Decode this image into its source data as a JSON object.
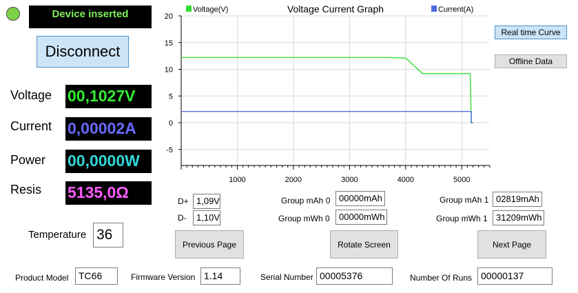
{
  "status": {
    "text": "Device inserted",
    "led_color": "#7ed24a"
  },
  "buttons": {
    "disconnect": "Disconnect",
    "realtime": "Real time Curve",
    "offline": "Offline Data",
    "prev": "Previous Page",
    "rotate": "Rotate Screen",
    "next": "Next Page"
  },
  "readings": {
    "voltage_label": "Voltage",
    "voltage_value": "00,1027V",
    "current_label": "Current",
    "current_value": "0,00002A",
    "power_label": "Power",
    "power_value": "00,0000W",
    "resis_label": "Resis",
    "resis_value": "5135,0Ω",
    "colors": {
      "voltage": "#33ee33",
      "current": "#6a6aff",
      "power": "#33d6d6",
      "resis": "#ff5cff"
    }
  },
  "temperature": {
    "label": "Temperature",
    "value": "36"
  },
  "dlines": {
    "dplus_label": "D+",
    "dplus_value": "1,09V",
    "dminus_label": "D-",
    "dminus_value": "1,10V"
  },
  "groups": {
    "mah0_label": "Group mAh 0",
    "mah0_value": "00000mAh",
    "mwh0_label": "Group mWh 0",
    "mwh0_value": "00000mWh",
    "mah1_label": "Group mAh 1",
    "mah1_value": "02819mAh",
    "mwh1_label": "Group mWh 1",
    "mwh1_value": "31209mWh"
  },
  "footer": {
    "model_label": "Product Model",
    "model_value": "TC66",
    "fw_label": "Firmware Version",
    "fw_value": "1.14",
    "serial_label": "Serial Number",
    "serial_value": "00005376",
    "runs_label": "Number Of Runs",
    "runs_value": "00000137"
  },
  "chart_data": {
    "type": "line",
    "title": "Voltage Current Graph",
    "xlim": [
      0,
      5500
    ],
    "ylim": [
      -8,
      20
    ],
    "x_ticks": [
      1000,
      2000,
      3000,
      4000,
      5000
    ],
    "y_ticks": [
      20,
      15,
      10,
      5,
      0,
      -5
    ],
    "grid": true,
    "legend_placement": "top",
    "series": [
      {
        "name": "Voltage(V)",
        "color": "#33dd33",
        "points": [
          [
            0,
            12.2
          ],
          [
            3700,
            12.2
          ],
          [
            4000,
            12.1
          ],
          [
            4300,
            9.2
          ],
          [
            5150,
            9.2
          ],
          [
            5170,
            0
          ],
          [
            5200,
            0
          ]
        ]
      },
      {
        "name": "Current(A)",
        "color": "#4f6ce0",
        "points": [
          [
            0,
            2.1
          ],
          [
            5170,
            2.1
          ],
          [
            5170,
            0
          ],
          [
            5200,
            0
          ]
        ]
      }
    ]
  }
}
